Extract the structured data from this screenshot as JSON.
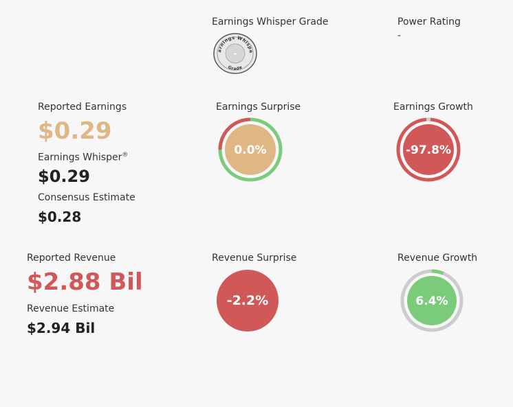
{
  "grade": {
    "label": "Earnings Whisper Grade",
    "badge_top_text": "Earnings Whisper",
    "badge_bottom_text": "Grade",
    "badge_value": "-"
  },
  "power": {
    "label": "Power Rating",
    "value": "-"
  },
  "earnings": {
    "reported_label": "Reported Earnings",
    "reported_value": "$0.29",
    "whisper_label": "Earnings Whisper",
    "whisper_mark": "®",
    "whisper_value": "$0.29",
    "consensus_label": "Consensus Estimate",
    "consensus_value": "$0.28",
    "surprise_label": "Earnings Surprise",
    "surprise_value": "0.0%",
    "growth_label": "Earnings Growth",
    "growth_value": "-97.8%"
  },
  "revenue": {
    "reported_label": "Reported Revenue",
    "reported_value": "$2.88 Bil",
    "estimate_label": "Revenue Estimate",
    "estimate_value": "$2.94 Bil",
    "surprise_label": "Revenue Surprise",
    "surprise_value": "-2.2%",
    "growth_label": "Revenue Growth",
    "growth_value": "6.4%"
  },
  "colors": {
    "tan": "#dfb784",
    "red": "#d05858",
    "green": "#7acc7a",
    "gray_ring": "#cccccc",
    "dark": "#222222"
  }
}
